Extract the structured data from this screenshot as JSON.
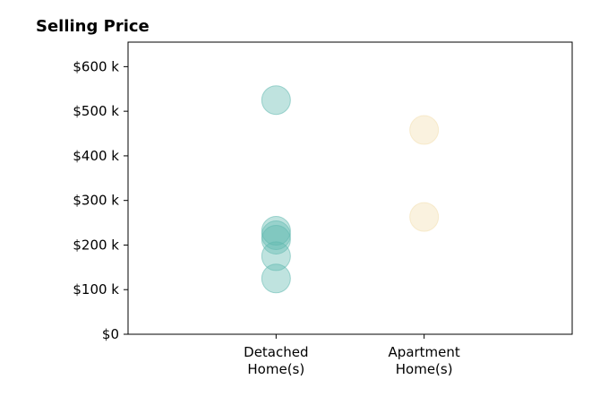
{
  "chart_data": {
    "type": "scatter",
    "title": "Selling Price",
    "xlabel": "",
    "ylabel": "",
    "categories": [
      "Detached\nHome(s)",
      "Apartment\nHome(s)"
    ],
    "y_tick_values": [
      0,
      100000,
      200000,
      300000,
      400000,
      500000,
      600000
    ],
    "y_tick_labels": [
      "$0",
      "$100 k",
      "$200 k",
      "$300 k",
      "$400 k",
      "$500 k",
      "$600 k"
    ],
    "ylim": [
      0,
      655000
    ],
    "xlim": [
      -1,
      2
    ],
    "grid": false,
    "series": [
      {
        "category_index": 0,
        "color": "#5fb8ae",
        "values": [
          525000,
          232000,
          222000,
          212000,
          175000,
          125000
        ]
      },
      {
        "category_index": 1,
        "color": "#f2dfae",
        "values": [
          458000,
          263000
        ]
      }
    ]
  }
}
